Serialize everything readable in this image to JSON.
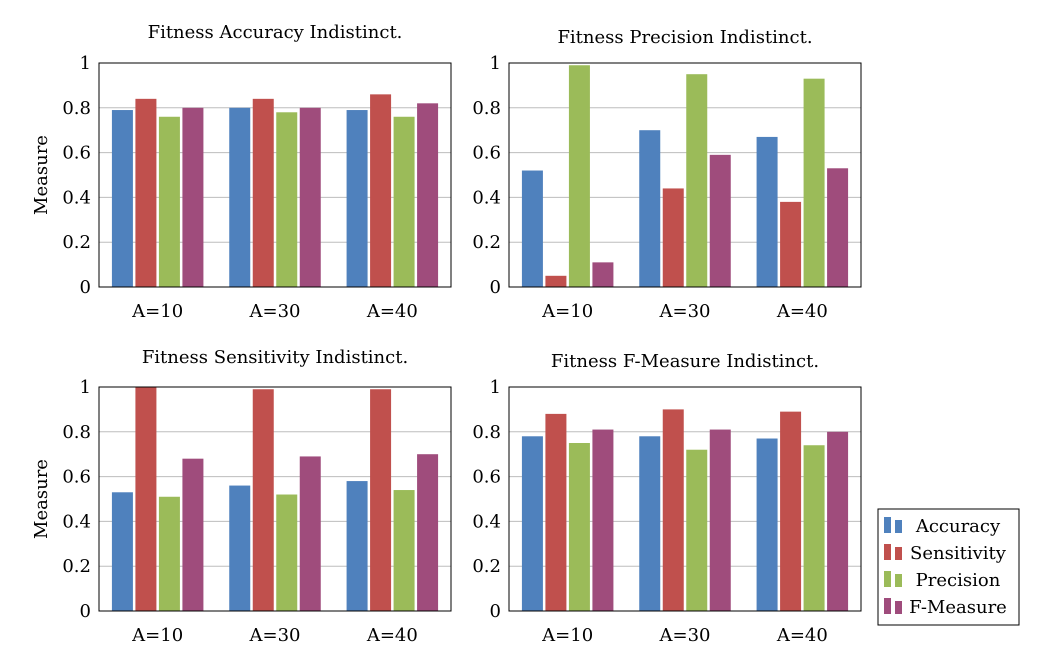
{
  "chart_data": [
    {
      "type": "bar",
      "title": "Fitness Accuracy Indistinct.",
      "ylabel": "Measure",
      "xlabel": "",
      "ylim": [
        0,
        1
      ],
      "yticks": [
        "0",
        "0.2",
        "0.4",
        "0.6",
        "0.8",
        "1"
      ],
      "grid": "horizontal",
      "categories": [
        "A=10",
        "A=30",
        "A=40"
      ],
      "series": [
        {
          "name": "Accuracy",
          "color": "#4f81bd",
          "values": [
            0.79,
            0.8,
            0.79
          ]
        },
        {
          "name": "Sensitivity",
          "color": "#c0504d",
          "values": [
            0.84,
            0.84,
            0.86
          ]
        },
        {
          "name": "Precision",
          "color": "#9bbb59",
          "values": [
            0.76,
            0.78,
            0.76
          ]
        },
        {
          "name": "F-Measure",
          "color": "#9f4c7c",
          "values": [
            0.8,
            0.8,
            0.82
          ]
        }
      ]
    },
    {
      "type": "bar",
      "title": "Fitness Precision Indistinct.",
      "ylabel": "",
      "xlabel": "",
      "ylim": [
        0,
        1
      ],
      "yticks": [
        "0",
        "0.2",
        "0.4",
        "0.6",
        "0.8",
        "1"
      ],
      "grid": "horizontal",
      "categories": [
        "A=10",
        "A=30",
        "A=40"
      ],
      "series": [
        {
          "name": "Accuracy",
          "color": "#4f81bd",
          "values": [
            0.52,
            0.7,
            0.67
          ]
        },
        {
          "name": "Sensitivity",
          "color": "#c0504d",
          "values": [
            0.05,
            0.44,
            0.38
          ]
        },
        {
          "name": "Precision",
          "color": "#9bbb59",
          "values": [
            0.99,
            0.95,
            0.93
          ]
        },
        {
          "name": "F-Measure",
          "color": "#9f4c7c",
          "values": [
            0.11,
            0.59,
            0.53
          ]
        }
      ]
    },
    {
      "type": "bar",
      "title": "Fitness Sensitivity Indistinct.",
      "ylabel": "Measure",
      "xlabel": "",
      "ylim": [
        0,
        1
      ],
      "yticks": [
        "0",
        "0.2",
        "0.4",
        "0.6",
        "0.8",
        "1"
      ],
      "grid": "horizontal",
      "categories": [
        "A=10",
        "A=30",
        "A=40"
      ],
      "series": [
        {
          "name": "Accuracy",
          "color": "#4f81bd",
          "values": [
            0.53,
            0.56,
            0.58
          ]
        },
        {
          "name": "Sensitivity",
          "color": "#c0504d",
          "values": [
            1.0,
            0.99,
            0.99
          ]
        },
        {
          "name": "Precision",
          "color": "#9bbb59",
          "values": [
            0.51,
            0.52,
            0.54
          ]
        },
        {
          "name": "F-Measure",
          "color": "#9f4c7c",
          "values": [
            0.68,
            0.69,
            0.7
          ]
        }
      ]
    },
    {
      "type": "bar",
      "title": "Fitness F-Measure Indistinct.",
      "ylabel": "",
      "xlabel": "",
      "ylim": [
        0,
        1
      ],
      "yticks": [
        "0",
        "0.2",
        "0.4",
        "0.6",
        "0.8",
        "1"
      ],
      "grid": "horizontal",
      "categories": [
        "A=10",
        "A=30",
        "A=40"
      ],
      "series": [
        {
          "name": "Accuracy",
          "color": "#4f81bd",
          "values": [
            0.78,
            0.78,
            0.77
          ]
        },
        {
          "name": "Sensitivity",
          "color": "#c0504d",
          "values": [
            0.88,
            0.9,
            0.89
          ]
        },
        {
          "name": "Precision",
          "color": "#9bbb59",
          "values": [
            0.75,
            0.72,
            0.74
          ]
        },
        {
          "name": "F-Measure",
          "color": "#9f4c7c",
          "values": [
            0.81,
            0.81,
            0.8
          ]
        }
      ]
    }
  ],
  "legend": {
    "placement": "bottom-right",
    "entries": [
      {
        "label": "Accuracy",
        "color": "#4f81bd"
      },
      {
        "label": "Sensitivity",
        "color": "#c0504d"
      },
      {
        "label": "Precision",
        "color": "#9bbb59"
      },
      {
        "label": "F-Measure",
        "color": "#9f4c7c"
      }
    ]
  }
}
